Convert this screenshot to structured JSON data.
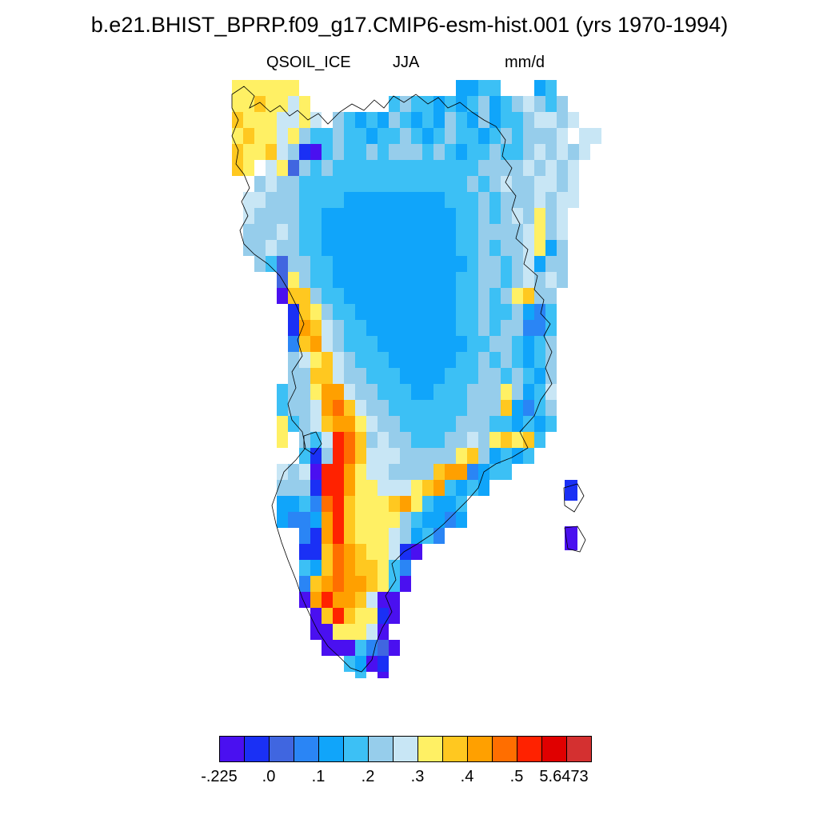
{
  "title": "b.e21.BHIST_BPRP.f09_g17.CMIP6-esm-hist.001 (yrs 1970-1994)",
  "variable": "QSOIL_ICE",
  "season": "JJA",
  "units": "mm/d",
  "colorbar": {
    "colors": [
      "#4a10f0",
      "#1a30f5",
      "#4066e0",
      "#2a85f5",
      "#10a5fa",
      "#3cc0f5",
      "#96cdeb",
      "#c8e6f5",
      "#fff064",
      "#ffc820",
      "#ffa000",
      "#ff6e00",
      "#ff2200",
      "#e00000",
      "#d43030"
    ],
    "labels": [
      {
        "text": "-.225",
        "boundary": 0
      },
      {
        "text": ".0",
        "boundary": 1
      },
      {
        "text": ".1",
        "boundary": 2
      },
      {
        "text": ".2",
        "boundary": 3
      },
      {
        "text": ".3",
        "boundary": 4
      },
      {
        "text": ".4",
        "boundary": 5
      },
      {
        "text": ".5",
        "boundary": 6
      },
      {
        "text": "5.6473",
        "boundary": 7
      }
    ]
  }
}
